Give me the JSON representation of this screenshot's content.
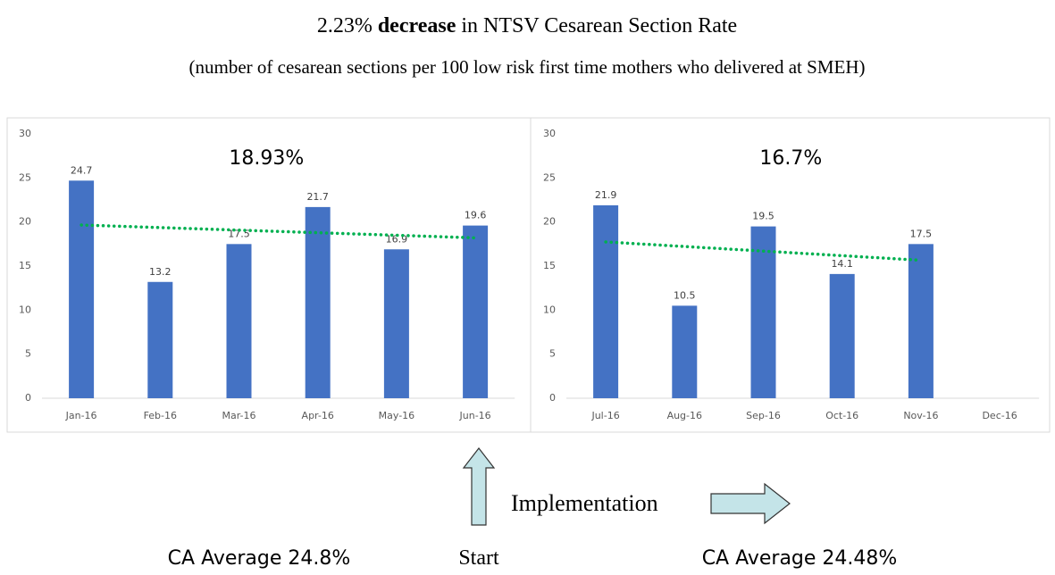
{
  "title_parts": [
    "2.23%",
    "decrease",
    "in NTSV Cesarean Section Rate"
  ],
  "subtitle": "(number of cesarean sections per 100 low risk first time mothers who delivered at SMEH)",
  "annotations": {
    "implementation": "Implementation",
    "start": "Start",
    "left_average": "CA Average 24.8%",
    "right_average": "CA Average 24.48%"
  },
  "chart_data": [
    {
      "type": "bar",
      "annotation": "18.93%",
      "categories": [
        "Jan-16",
        "Feb-16",
        "Mar-16",
        "Apr-16",
        "May-16",
        "Jun-16"
      ],
      "values": [
        24.7,
        13.2,
        17.5,
        21.7,
        16.9,
        19.6
      ],
      "color": "#4472c4",
      "ylim": [
        0,
        30
      ],
      "yticks": [
        0,
        5,
        10,
        15,
        20,
        25,
        30
      ],
      "grid": false,
      "trendline": {
        "type": "linear",
        "color": "#00b050",
        "style": "dotted"
      }
    },
    {
      "type": "bar",
      "annotation": "16.7%",
      "categories": [
        "Jul-16",
        "Aug-16",
        "Sep-16",
        "Oct-16",
        "Nov-16",
        "Dec-16"
      ],
      "values": [
        21.9,
        10.5,
        19.5,
        14.1,
        17.5,
        null
      ],
      "color": "#4472c4",
      "ylim": [
        0,
        30
      ],
      "yticks": [
        0,
        5,
        10,
        15,
        20,
        25,
        30
      ],
      "grid": false,
      "trendline": {
        "type": "linear",
        "color": "#00b050",
        "style": "dotted"
      }
    }
  ]
}
